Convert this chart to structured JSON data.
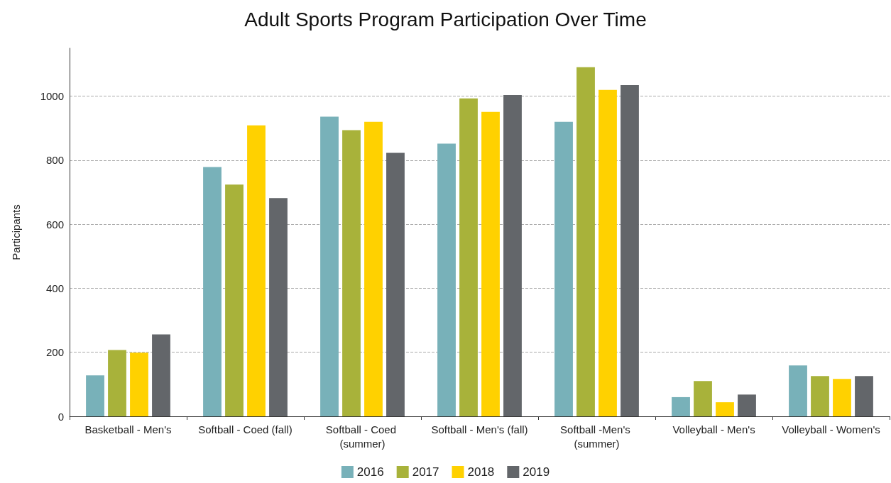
{
  "chart_data": {
    "type": "bar",
    "title": "Adult Sports Program Participation Over Time",
    "ylabel": "Participants",
    "categories": [
      "Basketball - Men's",
      "Softball - Coed (fall)",
      "Softball - Coed (summer)",
      "Softball - Men's (fall)",
      "Softball -Men's (summer)",
      "Volleyball - Men's",
      "Volleyball - Women's"
    ],
    "series": [
      {
        "name": "2016",
        "color": "#78b1b9",
        "values": [
          128,
          779,
          936,
          852,
          920,
          60,
          159
        ]
      },
      {
        "name": "2017",
        "color": "#a8b23a",
        "values": [
          207,
          724,
          894,
          993,
          1091,
          110,
          126
        ]
      },
      {
        "name": "2018",
        "color": "#ffd100",
        "values": [
          199,
          909,
          920,
          951,
          1020,
          44,
          117
        ]
      },
      {
        "name": "2019",
        "color": "#63666a",
        "values": [
          256,
          682,
          823,
          1004,
          1035,
          68,
          126
        ]
      }
    ],
    "ylim": [
      0,
      1150
    ],
    "yticks": [
      0,
      200,
      400,
      600,
      800,
      1000
    ],
    "grid": "y",
    "legend": "bottom"
  }
}
